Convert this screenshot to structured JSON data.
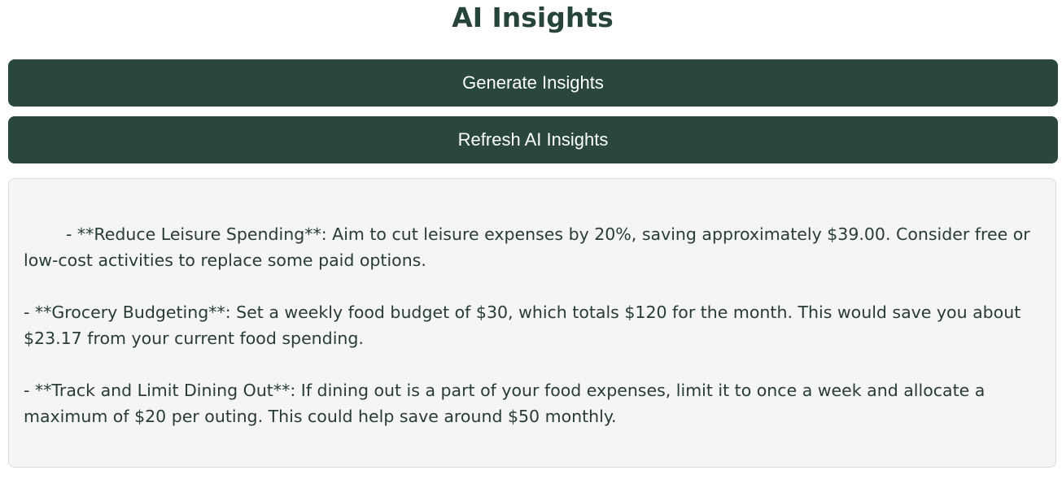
{
  "header": {
    "title": "AI Insights"
  },
  "actions": {
    "generate_label": "Generate Insights",
    "refresh_label": "Refresh AI Insights"
  },
  "insights": [
    {
      "text": "- **Reduce Leisure Spending**: Aim to cut leisure expenses by 20%, saving approximately $39.00. Consider free or low-cost activities to replace some paid options."
    },
    {
      "text": "- **Grocery Budgeting**: Set a weekly food budget of $30, which totals $120 for the month. This would save you about $23.17 from your current food spending."
    },
    {
      "text": "- **Track and Limit Dining Out**: If dining out is a part of your food expenses, limit it to once a week and allocate a maximum of $20 per outing. This could help save around $50 monthly."
    }
  ],
  "colors": {
    "accent": "#2a473c",
    "title": "#26443a",
    "panel_bg": "#f5f5f5",
    "text": "#283c35"
  }
}
